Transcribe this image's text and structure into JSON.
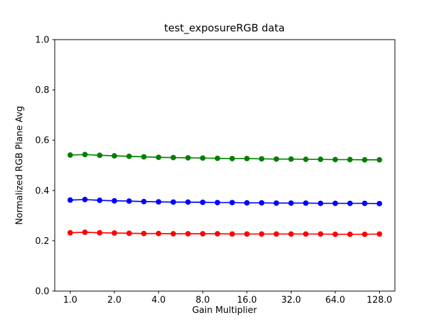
{
  "chart_data": {
    "type": "line",
    "title": "test_exposureRGB data",
    "xlabel": "Gain Multiplier",
    "ylabel": "Normalized RGB Plane Avg",
    "x_scale": "log2",
    "grid": false,
    "legend": "none",
    "ylim": [
      0.0,
      1.0
    ],
    "xlim_log2": [
      -0.35,
      7.35
    ],
    "x_ticks": [
      1.0,
      2.0,
      4.0,
      8.0,
      16.0,
      32.0,
      64.0,
      128.0
    ],
    "x_tick_labels": [
      "1.0",
      "2.0",
      "4.0",
      "8.0",
      "16.0",
      "32.0",
      "64.0",
      "128.0"
    ],
    "y_ticks": [
      0.0,
      0.2,
      0.4,
      0.6,
      0.8,
      1.0
    ],
    "y_tick_labels": [
      "0.0",
      "0.2",
      "0.4",
      "0.6",
      "0.8",
      "1.0"
    ],
    "x": [
      1.0,
      1.2599,
      1.5874,
      2.0,
      2.5198,
      3.1748,
      4.0,
      5.0397,
      6.3496,
      8.0,
      10.0794,
      12.6992,
      16.0,
      20.1587,
      25.3984,
      32.0,
      40.3175,
      50.7968,
      64.0,
      80.6349,
      101.5937,
      128.0
    ],
    "series": [
      {
        "name": "red",
        "color": "#ff0000",
        "values": [
          0.232,
          0.234,
          0.232,
          0.231,
          0.23,
          0.229,
          0.229,
          0.228,
          0.228,
          0.228,
          0.228,
          0.227,
          0.227,
          0.227,
          0.227,
          0.227,
          0.227,
          0.227,
          0.226,
          0.226,
          0.226,
          0.227
        ]
      },
      {
        "name": "green",
        "color": "#008000",
        "values": [
          0.541,
          0.543,
          0.54,
          0.538,
          0.536,
          0.534,
          0.532,
          0.531,
          0.53,
          0.529,
          0.528,
          0.527,
          0.527,
          0.526,
          0.525,
          0.525,
          0.524,
          0.524,
          0.523,
          0.523,
          0.522,
          0.522
        ]
      },
      {
        "name": "blue",
        "color": "#0000ff",
        "values": [
          0.362,
          0.364,
          0.361,
          0.359,
          0.358,
          0.356,
          0.355,
          0.354,
          0.354,
          0.353,
          0.352,
          0.352,
          0.351,
          0.351,
          0.35,
          0.35,
          0.35,
          0.349,
          0.349,
          0.349,
          0.349,
          0.348
        ]
      }
    ],
    "marker": "circle",
    "axis_color": "#000000",
    "background_color": "#ffffff"
  }
}
